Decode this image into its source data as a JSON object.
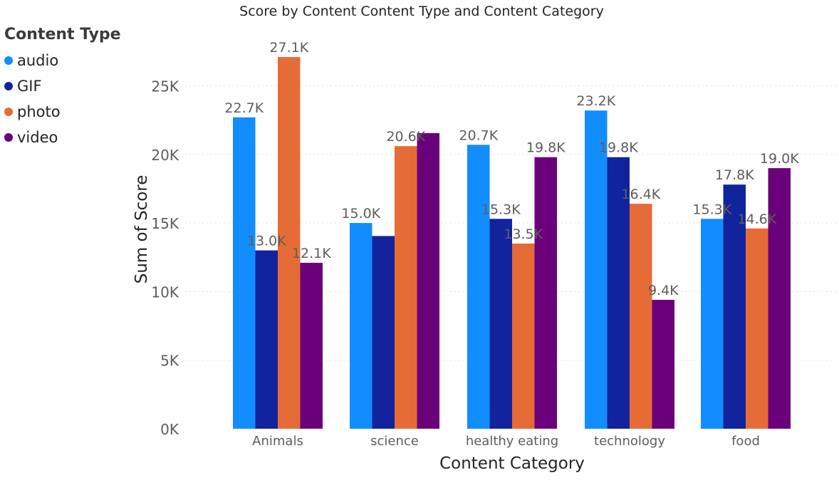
{
  "chart_data": {
    "type": "bar",
    "title": "Score by Content Content Type and Content Category",
    "xlabel": "Content Category",
    "ylabel": "Sum of Score",
    "categories": [
      "Animals",
      "science",
      "healthy eating",
      "technology",
      "food"
    ],
    "ylim": [
      0,
      27500
    ],
    "yticks": [
      0,
      5000,
      10000,
      15000,
      20000,
      25000
    ],
    "ytick_labels": [
      "0K",
      "5K",
      "10K",
      "15K",
      "20K",
      "25K"
    ],
    "grid": true,
    "legend": {
      "title": "Content Type",
      "placement": "left"
    },
    "series": [
      {
        "name": "audio",
        "color": "#118DFF",
        "values": [
          22700,
          15000,
          20700,
          23200,
          15300
        ],
        "labels": [
          "22.7K",
          "15.0K",
          "20.7K",
          "23.2K",
          "15.3K"
        ]
      },
      {
        "name": "GIF",
        "color": "#12239E",
        "values": [
          13000,
          14050,
          15300,
          19800,
          17800
        ],
        "labels": [
          "13.0K",
          "",
          "15.3K",
          "19.8K",
          "17.8K"
        ]
      },
      {
        "name": "photo",
        "color": "#E66C37",
        "values": [
          27100,
          20600,
          13500,
          16400,
          14600
        ],
        "labels": [
          "27.1K",
          "20.6K",
          "13.5K",
          "16.4K",
          "14.6K"
        ]
      },
      {
        "name": "video",
        "color": "#6B007B",
        "values": [
          12100,
          21550,
          19800,
          9400,
          19000
        ],
        "labels": [
          "12.1K",
          "",
          "19.8K",
          "9.4K",
          "19.0K"
        ]
      }
    ]
  }
}
